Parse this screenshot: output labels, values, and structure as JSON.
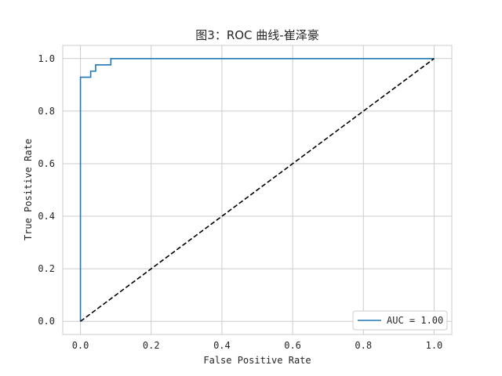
{
  "chart_data": {
    "type": "line",
    "title": "图3：ROC 曲线-崔泽豪",
    "xlabel": "False Positive Rate",
    "ylabel": "True Positive Rate",
    "xlim": [
      -0.05,
      1.05
    ],
    "ylim": [
      -0.05,
      1.05
    ],
    "xticks": [
      "0.0",
      "0.2",
      "0.4",
      "0.6",
      "0.8",
      "1.0"
    ],
    "yticks": [
      "0.0",
      "0.2",
      "0.4",
      "0.6",
      "0.8",
      "1.0"
    ],
    "grid": true,
    "legend_position": "lower-right",
    "series": [
      {
        "name": "AUC = 1.00",
        "color": "#1f77b4",
        "style": "solid",
        "x": [
          0.0,
          0.0,
          0.0,
          0.029,
          0.029,
          0.043,
          0.043,
          0.086,
          0.086,
          1.0
        ],
        "y": [
          0.0,
          0.929,
          0.929,
          0.929,
          0.952,
          0.952,
          0.976,
          0.976,
          1.0,
          1.0
        ]
      },
      {
        "name": "",
        "color": "#000000",
        "style": "dashed",
        "x": [
          0.0,
          1.0
        ],
        "y": [
          0.0,
          1.0
        ]
      }
    ]
  }
}
